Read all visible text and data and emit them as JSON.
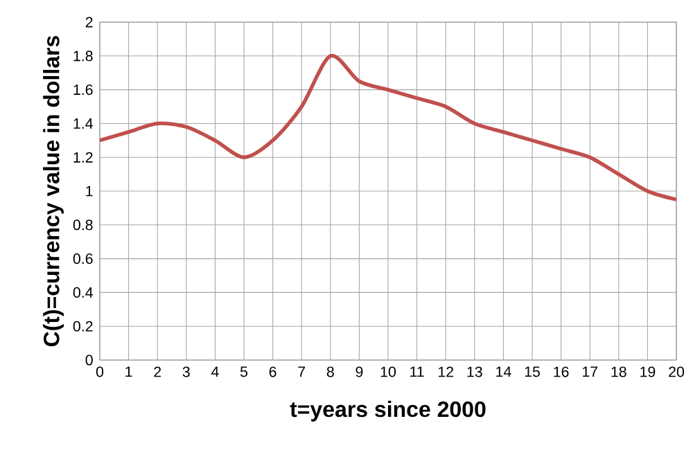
{
  "chart_data": {
    "type": "line",
    "xlabel": "t=years since 2000",
    "ylabel": "C(t)=currency value in dollars",
    "x": [
      0,
      1,
      2,
      3,
      4,
      5,
      6,
      7,
      8,
      9,
      10,
      11,
      12,
      13,
      14,
      15,
      16,
      17,
      18,
      19,
      20
    ],
    "series": [
      {
        "color": "#c0504d",
        "values": [
          1.3,
          1.35,
          1.4,
          1.38,
          1.3,
          1.2,
          1.3,
          1.5,
          1.8,
          1.65,
          1.6,
          1.55,
          1.5,
          1.4,
          1.35,
          1.3,
          1.25,
          1.2,
          1.1,
          1.0,
          0.95
        ]
      }
    ],
    "xlim": [
      0,
      20
    ],
    "xticks": [
      0,
      1,
      2,
      3,
      4,
      5,
      6,
      7,
      8,
      9,
      10,
      11,
      12,
      13,
      14,
      15,
      16,
      17,
      18,
      19,
      20
    ],
    "ylim": [
      0,
      2
    ],
    "yticks": [
      0,
      0.2,
      0.4,
      0.6,
      0.8,
      1,
      1.2,
      1.4,
      1.6,
      1.8,
      2
    ],
    "grid": true,
    "marker": "none",
    "line_style": "solid"
  }
}
